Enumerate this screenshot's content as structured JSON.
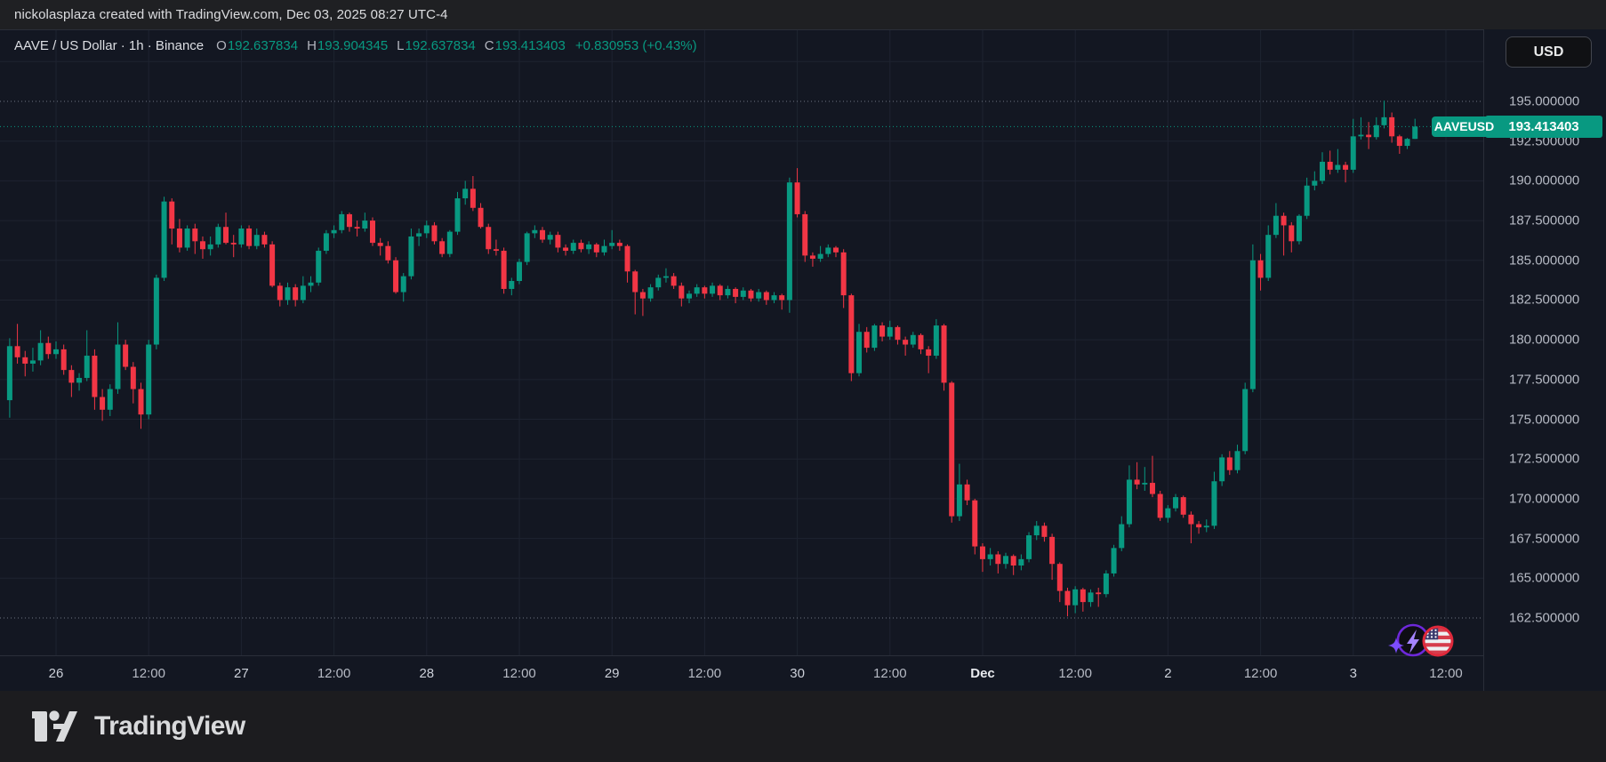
{
  "attribution": {
    "text": "nickolasplaza created with TradingView.com, Dec 03, 2025 08:27 UTC-4"
  },
  "symbol_row": {
    "title": "AAVE / US Dollar · 1h · Binance",
    "stats": [
      {
        "label": "O",
        "value": "192.637834"
      },
      {
        "label": "H",
        "value": "193.904345"
      },
      {
        "label": "L",
        "value": "192.637834"
      },
      {
        "label": "C",
        "value": "193.413403"
      }
    ],
    "change_text": "+0.830953 (+0.43%)"
  },
  "currency_button": {
    "label": "USD"
  },
  "pair_label": {
    "text": "AAVEUSD"
  },
  "footer": {
    "brand": "TradingView"
  },
  "icons": {
    "left": "lightning-sparkle-icon",
    "right": "us-flag-icon"
  },
  "colors": {
    "up": "#089981",
    "down": "#f23645",
    "background": "#131722",
    "grid": "#1e2330",
    "dotted_line": "#6f7683",
    "axis_text": "#b6bac4",
    "accent_label_bg": "#089981"
  },
  "chart_data": {
    "type": "candlestick",
    "title": "AAVE / US Dollar · 1h · Binance",
    "symbol": "AAVEUSD",
    "exchange": "Binance",
    "interval": "1h",
    "legend_last_candle": {
      "open": "192.637834",
      "high": "193.904345",
      "low": "192.637834",
      "close": "193.413403",
      "change": "+0.830953",
      "change_pct": "+0.43%"
    },
    "current_price": 193.413403,
    "current_price_label": "193.413403",
    "price_axis": {
      "labels": [
        "195.000000",
        "192.500000",
        "190.000000",
        "187.500000",
        "185.000000",
        "182.500000",
        "180.000000",
        "177.500000",
        "175.000000",
        "172.500000",
        "170.000000",
        "167.500000",
        "165.000000",
        "162.500000"
      ],
      "values": [
        195.0,
        192.5,
        190.0,
        187.5,
        185.0,
        182.5,
        180.0,
        177.5,
        175.0,
        172.5,
        170.0,
        167.5,
        165.0,
        162.5
      ],
      "dotted_high": 195.0,
      "dotted_low": 162.5,
      "visible_range": [
        159.8,
        197.6
      ]
    },
    "time_axis": {
      "ticks": [
        {
          "label": "26",
          "style": "strong"
        },
        {
          "label": "12:00",
          "style": "normal"
        },
        {
          "label": "27",
          "style": "strong"
        },
        {
          "label": "12:00",
          "style": "normal"
        },
        {
          "label": "28",
          "style": "strong"
        },
        {
          "label": "12:00",
          "style": "normal"
        },
        {
          "label": "29",
          "style": "strong"
        },
        {
          "label": "12:00",
          "style": "normal"
        },
        {
          "label": "30",
          "style": "strong"
        },
        {
          "label": "12:00",
          "style": "normal"
        },
        {
          "label": "Dec",
          "style": "month"
        },
        {
          "label": "12:00",
          "style": "normal"
        },
        {
          "label": "2",
          "style": "strong"
        },
        {
          "label": "12:00",
          "style": "normal"
        },
        {
          "label": "3",
          "style": "strong"
        },
        {
          "label": "12:00",
          "style": "normal"
        }
      ]
    },
    "grid": true,
    "candles": [
      [
        176.2,
        180.1,
        175.1,
        179.6
      ],
      [
        179.6,
        181.0,
        178.5,
        178.9
      ],
      [
        178.9,
        179.3,
        177.7,
        178.5
      ],
      [
        178.5,
        179.5,
        178.0,
        178.7
      ],
      [
        178.7,
        180.6,
        178.4,
        179.8
      ],
      [
        179.8,
        180.2,
        178.8,
        179.1
      ],
      [
        179.1,
        179.9,
        178.8,
        179.4
      ],
      [
        179.4,
        179.7,
        177.8,
        178.1
      ],
      [
        178.1,
        178.4,
        176.4,
        177.3
      ],
      [
        177.3,
        177.9,
        176.8,
        177.6
      ],
      [
        177.6,
        180.6,
        177.4,
        179.0
      ],
      [
        179.0,
        179.4,
        175.6,
        176.4
      ],
      [
        176.4,
        176.9,
        174.9,
        175.6
      ],
      [
        175.6,
        177.2,
        175.2,
        176.9
      ],
      [
        176.9,
        181.1,
        176.6,
        179.7
      ],
      [
        179.7,
        180.0,
        178.1,
        178.3
      ],
      [
        178.3,
        178.6,
        176.0,
        176.9
      ],
      [
        176.9,
        177.3,
        174.4,
        175.3
      ],
      [
        175.3,
        180.0,
        175.0,
        179.7
      ],
      [
        179.7,
        184.1,
        179.4,
        183.9
      ],
      [
        183.9,
        189.0,
        183.7,
        188.7
      ],
      [
        188.7,
        188.9,
        186.0,
        187.0
      ],
      [
        187.0,
        187.6,
        185.5,
        185.8
      ],
      [
        185.8,
        187.2,
        185.6,
        187.0
      ],
      [
        187.0,
        187.3,
        185.4,
        186.2
      ],
      [
        186.2,
        186.5,
        185.1,
        185.7
      ],
      [
        185.7,
        186.5,
        185.3,
        186.0
      ],
      [
        186.0,
        187.3,
        185.8,
        187.1
      ],
      [
        187.1,
        188.0,
        186.0,
        186.1
      ],
      [
        186.1,
        186.6,
        185.2,
        186.0
      ],
      [
        186.0,
        187.2,
        185.8,
        187.0
      ],
      [
        187.0,
        187.2,
        185.7,
        185.9
      ],
      [
        185.9,
        187.0,
        185.7,
        186.6
      ],
      [
        186.6,
        186.8,
        185.8,
        186.0
      ],
      [
        186.0,
        186.2,
        183.3,
        183.4
      ],
      [
        183.4,
        183.6,
        182.1,
        182.5
      ],
      [
        182.5,
        183.6,
        182.2,
        183.3
      ],
      [
        183.3,
        183.5,
        182.1,
        182.5
      ],
      [
        182.5,
        184.0,
        182.3,
        183.4
      ],
      [
        183.4,
        184.0,
        183.0,
        183.6
      ],
      [
        183.6,
        185.8,
        183.4,
        185.6
      ],
      [
        185.6,
        186.9,
        185.4,
        186.7
      ],
      [
        186.7,
        187.2,
        186.4,
        186.9
      ],
      [
        186.9,
        188.1,
        186.7,
        187.9
      ],
      [
        187.9,
        188.0,
        186.8,
        187.1
      ],
      [
        187.1,
        187.5,
        186.5,
        187.0
      ],
      [
        187.0,
        188.0,
        186.8,
        187.5
      ],
      [
        187.5,
        187.7,
        185.9,
        186.1
      ],
      [
        186.1,
        186.4,
        185.3,
        185.9
      ],
      [
        185.9,
        186.2,
        184.8,
        185.0
      ],
      [
        185.0,
        185.2,
        182.9,
        183.0
      ],
      [
        183.0,
        184.2,
        182.4,
        184.0
      ],
      [
        184.0,
        187.0,
        183.8,
        186.5
      ],
      [
        186.5,
        187.0,
        185.9,
        186.7
      ],
      [
        186.7,
        187.5,
        186.4,
        187.2
      ],
      [
        187.2,
        187.4,
        186.0,
        186.2
      ],
      [
        186.2,
        186.4,
        185.2,
        185.4
      ],
      [
        185.4,
        186.9,
        185.2,
        186.8
      ],
      [
        186.8,
        189.3,
        186.6,
        188.9
      ],
      [
        188.9,
        190.0,
        188.5,
        189.5
      ],
      [
        189.5,
        190.3,
        188.1,
        188.3
      ],
      [
        188.3,
        188.6,
        187.0,
        187.1
      ],
      [
        187.1,
        187.3,
        185.4,
        185.7
      ],
      [
        185.7,
        186.3,
        185.3,
        185.6
      ],
      [
        185.6,
        185.8,
        182.9,
        183.2
      ],
      [
        183.2,
        183.9,
        182.8,
        183.7
      ],
      [
        183.7,
        185.1,
        183.5,
        184.9
      ],
      [
        184.9,
        186.8,
        184.7,
        186.7
      ],
      [
        186.7,
        187.2,
        186.4,
        186.9
      ],
      [
        186.9,
        187.1,
        186.1,
        186.3
      ],
      [
        186.3,
        186.8,
        186.0,
        186.6
      ],
      [
        186.6,
        186.8,
        185.5,
        185.8
      ],
      [
        185.8,
        186.0,
        185.3,
        185.6
      ],
      [
        185.6,
        186.3,
        185.4,
        186.1
      ],
      [
        186.1,
        186.3,
        185.5,
        185.7
      ],
      [
        185.7,
        186.2,
        185.4,
        186.0
      ],
      [
        186.0,
        186.1,
        185.2,
        185.5
      ],
      [
        185.5,
        186.3,
        185.3,
        185.9
      ],
      [
        185.9,
        186.9,
        185.7,
        186.1
      ],
      [
        186.1,
        186.3,
        185.6,
        185.9
      ],
      [
        185.9,
        186.0,
        183.6,
        184.3
      ],
      [
        184.3,
        184.4,
        181.6,
        183.0
      ],
      [
        183.0,
        183.2,
        181.5,
        182.6
      ],
      [
        182.6,
        183.5,
        182.4,
        183.3
      ],
      [
        183.3,
        184.1,
        183.1,
        183.9
      ],
      [
        183.9,
        184.5,
        183.6,
        184.0
      ],
      [
        184.0,
        184.2,
        183.2,
        183.4
      ],
      [
        183.4,
        183.6,
        182.1,
        182.6
      ],
      [
        182.6,
        183.1,
        182.3,
        182.9
      ],
      [
        182.9,
        183.5,
        182.7,
        183.3
      ],
      [
        183.3,
        183.4,
        182.6,
        182.9
      ],
      [
        182.9,
        183.6,
        182.7,
        183.4
      ],
      [
        183.4,
        183.5,
        182.5,
        182.8
      ],
      [
        182.8,
        183.4,
        182.6,
        183.2
      ],
      [
        183.2,
        183.3,
        182.3,
        182.7
      ],
      [
        182.7,
        183.3,
        182.5,
        183.1
      ],
      [
        183.1,
        183.2,
        182.4,
        182.6
      ],
      [
        182.6,
        183.2,
        182.4,
        183.0
      ],
      [
        183.0,
        183.1,
        182.2,
        182.5
      ],
      [
        182.5,
        183.0,
        182.3,
        182.8
      ],
      [
        182.8,
        182.9,
        181.9,
        182.5
      ],
      [
        182.5,
        190.2,
        181.7,
        189.9
      ],
      [
        189.9,
        190.8,
        187.7,
        187.9
      ],
      [
        187.9,
        188.1,
        184.9,
        185.3
      ],
      [
        185.3,
        185.5,
        184.6,
        185.1
      ],
      [
        185.1,
        185.9,
        184.9,
        185.4
      ],
      [
        185.4,
        186.0,
        185.2,
        185.8
      ],
      [
        185.8,
        185.9,
        185.2,
        185.5
      ],
      [
        185.5,
        185.7,
        182.0,
        182.8
      ],
      [
        182.8,
        182.9,
        177.4,
        177.9
      ],
      [
        177.9,
        181.0,
        177.7,
        180.5
      ],
      [
        180.5,
        180.8,
        179.2,
        179.5
      ],
      [
        179.5,
        181.0,
        179.3,
        180.9
      ],
      [
        180.9,
        181.1,
        179.9,
        180.2
      ],
      [
        180.2,
        181.2,
        180.0,
        180.8
      ],
      [
        180.8,
        180.9,
        179.7,
        180.0
      ],
      [
        180.0,
        180.2,
        179.0,
        179.7
      ],
      [
        179.7,
        180.5,
        179.5,
        180.3
      ],
      [
        180.3,
        180.4,
        179.1,
        179.4
      ],
      [
        179.4,
        179.6,
        177.9,
        179.0
      ],
      [
        179.0,
        181.3,
        178.8,
        180.9
      ],
      [
        180.9,
        181.0,
        176.8,
        177.3
      ],
      [
        177.3,
        177.4,
        168.5,
        168.9
      ],
      [
        168.9,
        172.2,
        168.6,
        170.9
      ],
      [
        170.9,
        171.2,
        169.6,
        169.9
      ],
      [
        169.9,
        170.0,
        166.5,
        167.0
      ],
      [
        167.0,
        167.2,
        165.4,
        166.2
      ],
      [
        166.2,
        166.9,
        165.8,
        166.5
      ],
      [
        166.5,
        166.7,
        165.3,
        165.9
      ],
      [
        165.9,
        166.6,
        165.6,
        166.4
      ],
      [
        166.4,
        166.5,
        165.2,
        165.8
      ],
      [
        165.8,
        166.5,
        165.5,
        166.2
      ],
      [
        166.2,
        167.9,
        166.0,
        167.7
      ],
      [
        167.7,
        168.6,
        167.4,
        168.3
      ],
      [
        168.3,
        168.5,
        167.3,
        167.6
      ],
      [
        167.6,
        167.8,
        164.9,
        165.9
      ],
      [
        165.9,
        166.0,
        163.5,
        164.2
      ],
      [
        164.2,
        164.4,
        162.6,
        163.3
      ],
      [
        163.3,
        164.5,
        162.8,
        164.3
      ],
      [
        164.3,
        164.4,
        162.9,
        163.5
      ],
      [
        163.5,
        164.3,
        163.2,
        164.1
      ],
      [
        164.1,
        164.4,
        163.2,
        164.0
      ],
      [
        164.0,
        165.5,
        163.8,
        165.3
      ],
      [
        165.3,
        167.1,
        165.1,
        166.9
      ],
      [
        166.9,
        168.9,
        166.7,
        168.4
      ],
      [
        168.4,
        172.1,
        168.2,
        171.2
      ],
      [
        171.2,
        172.3,
        170.6,
        170.9
      ],
      [
        170.9,
        172.0,
        170.5,
        171.0
      ],
      [
        171.0,
        172.7,
        170.1,
        170.3
      ],
      [
        170.3,
        170.5,
        168.6,
        168.8
      ],
      [
        168.8,
        169.6,
        168.5,
        169.4
      ],
      [
        169.4,
        170.3,
        169.2,
        170.1
      ],
      [
        170.1,
        170.2,
        168.8,
        169.0
      ],
      [
        169.0,
        169.2,
        167.2,
        168.4
      ],
      [
        168.4,
        168.6,
        167.8,
        168.2
      ],
      [
        168.2,
        168.7,
        167.9,
        168.3
      ],
      [
        168.3,
        171.7,
        168.1,
        171.1
      ],
      [
        171.1,
        172.8,
        170.8,
        172.6
      ],
      [
        172.6,
        173.0,
        171.5,
        171.8
      ],
      [
        171.8,
        173.4,
        171.6,
        173.0
      ],
      [
        173.0,
        177.3,
        172.8,
        176.9
      ],
      [
        176.9,
        186.0,
        176.7,
        185.0
      ],
      [
        185.0,
        185.4,
        183.1,
        183.9
      ],
      [
        183.9,
        187.2,
        183.7,
        186.6
      ],
      [
        186.6,
        188.6,
        186.4,
        187.8
      ],
      [
        187.8,
        188.0,
        185.3,
        187.2
      ],
      [
        187.2,
        187.4,
        185.5,
        186.2
      ],
      [
        186.2,
        187.9,
        186.0,
        187.8
      ],
      [
        187.8,
        190.2,
        187.6,
        189.7
      ],
      [
        189.7,
        190.6,
        189.4,
        190.0
      ],
      [
        190.0,
        191.8,
        189.8,
        191.2
      ],
      [
        191.2,
        191.9,
        190.4,
        190.7
      ],
      [
        190.7,
        192.0,
        190.5,
        191.0
      ],
      [
        191.0,
        191.2,
        189.9,
        190.7
      ],
      [
        190.7,
        193.9,
        190.5,
        192.8
      ],
      [
        192.8,
        194.0,
        192.6,
        192.9
      ],
      [
        192.9,
        193.7,
        192.0,
        192.75
      ],
      [
        192.75,
        194.0,
        192.6,
        193.5
      ],
      [
        193.5,
        195.05,
        193.3,
        194.0
      ],
      [
        194.0,
        194.3,
        192.4,
        192.8
      ],
      [
        192.8,
        192.9,
        191.7,
        192.2
      ],
      [
        192.2,
        192.7,
        192.0,
        192.64
      ],
      [
        192.637834,
        193.904345,
        192.637834,
        193.413403
      ]
    ]
  }
}
